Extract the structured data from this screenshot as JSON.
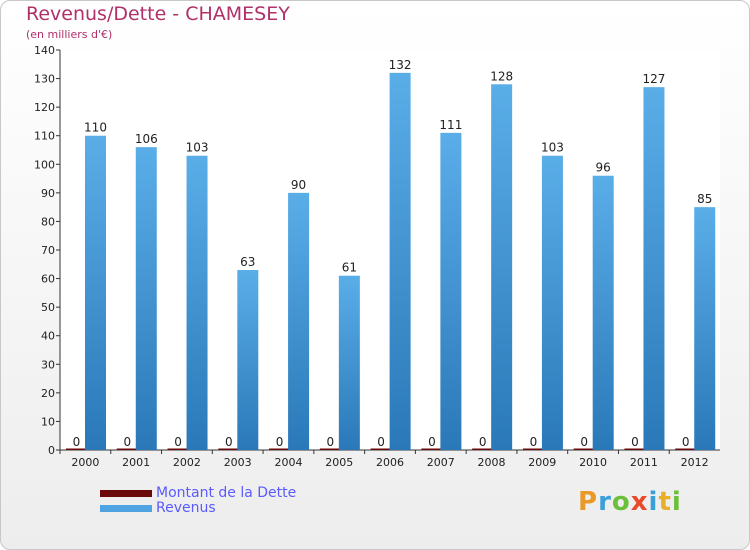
{
  "header": {
    "title": "Revenus/Dette - CHAMESEY",
    "subtitle": "(en milliers d'€)"
  },
  "logo": {
    "text": "Proxiti",
    "letters": [
      "P",
      "r",
      "o",
      "x",
      "i",
      "t",
      "i"
    ]
  },
  "colors": {
    "revenus": "#4fa3e3",
    "dette": "#6b0a0a",
    "title": "#b0306a",
    "legend_text": "#5a5aff"
  },
  "chart_data": {
    "type": "bar",
    "title": "Revenus/Dette - CHAMESEY",
    "ylabel": "(en milliers d'€)",
    "categories": [
      "2000",
      "2001",
      "2002",
      "2003",
      "2004",
      "2005",
      "2006",
      "2007",
      "2008",
      "2009",
      "2010",
      "2011",
      "2012"
    ],
    "series": [
      {
        "name": "Montant de la Dette",
        "values": [
          0,
          0,
          0,
          0,
          0,
          0,
          0,
          0,
          0,
          0,
          0,
          0,
          0
        ]
      },
      {
        "name": "Revenus",
        "values": [
          110,
          106,
          103,
          63,
          90,
          61,
          132,
          111,
          128,
          103,
          96,
          127,
          85
        ]
      }
    ],
    "ylim": [
      0,
      140
    ],
    "yticks": [
      0,
      10,
      20,
      30,
      40,
      50,
      60,
      70,
      80,
      90,
      100,
      110,
      120,
      130,
      140
    ],
    "grid": false,
    "legend": "bottom-left"
  }
}
